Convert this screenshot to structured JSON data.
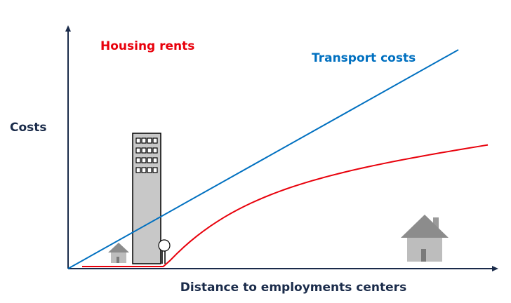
{
  "chart_data": {
    "type": "line",
    "xlabel": "Distance to employments centers",
    "ylabel": "Costs",
    "grid": false,
    "legend": "none",
    "series": [
      {
        "name": "Housing rents",
        "color": "#e8000b"
      },
      {
        "name": "Transport costs",
        "color": "#0070c0"
      }
    ],
    "annotations": {
      "illustrations": [
        "small-house",
        "apartment-tower",
        "person",
        "large-house"
      ]
    }
  }
}
